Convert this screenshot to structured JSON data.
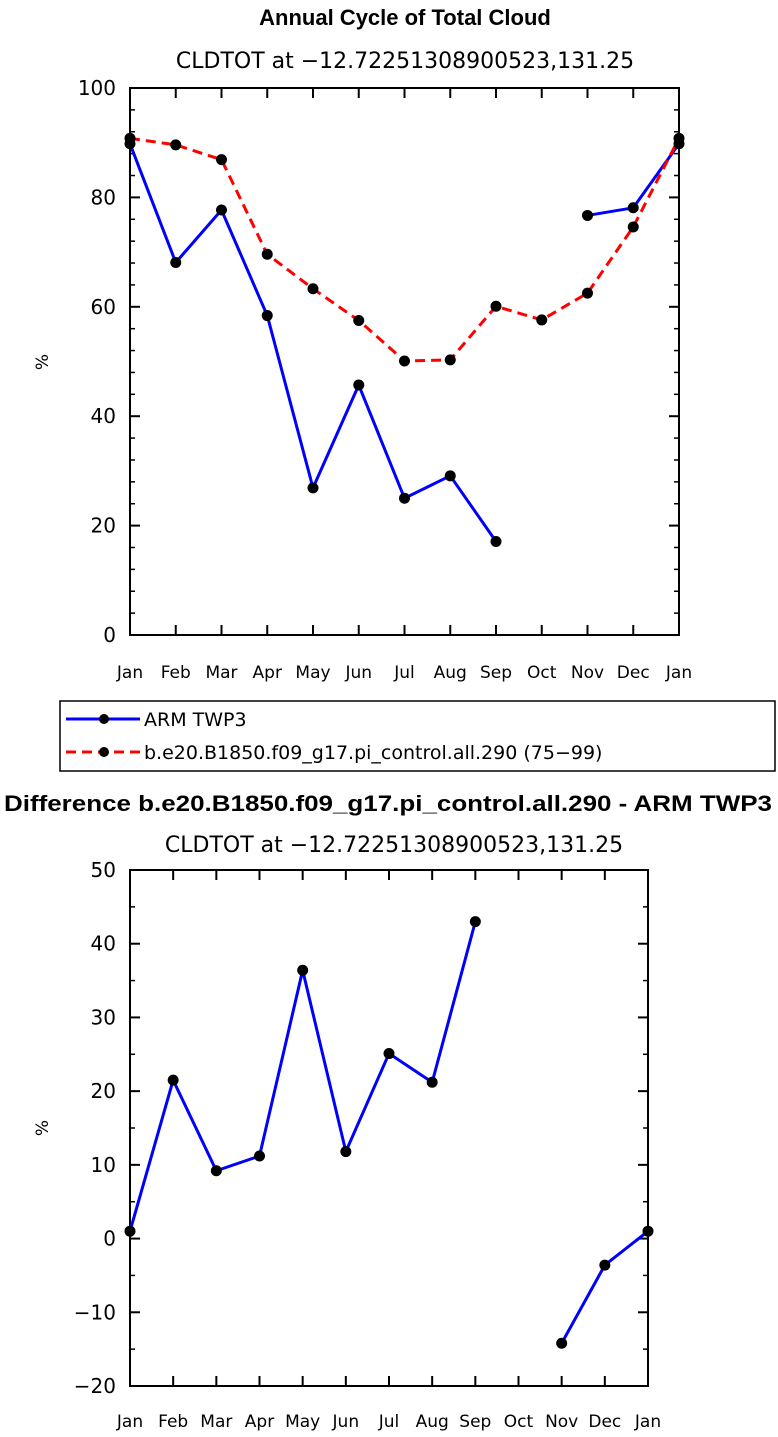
{
  "chart_data": [
    {
      "type": "line",
      "title": "Annual Cycle of Total Cloud",
      "subtitle": "CLDTOT at −12.72251308900523,131.25",
      "ylabel": "%",
      "xlabel": "",
      "ylim": [
        0,
        100
      ],
      "yticks": [
        "0",
        "20",
        "40",
        "60",
        "80",
        "100"
      ],
      "categories": [
        "Jan",
        "Feb",
        "Mar",
        "Apr",
        "May",
        "Jun",
        "Jul",
        "Aug",
        "Sep",
        "Oct",
        "Nov",
        "Dec",
        "Jan"
      ],
      "grid": false,
      "legend_position": "below",
      "series": [
        {
          "name": "ARM TWP3",
          "color": "#0000ff",
          "dash": "solid",
          "values": [
            89.8,
            68.1,
            77.7,
            58.4,
            26.9,
            45.7,
            25.0,
            29.1,
            17.1,
            null,
            76.7,
            78.1,
            89.8
          ]
        },
        {
          "name": "b.e20.B1850.f09_g17.pi_control.all.290 (75−99)",
          "color": "#ff0000",
          "dash": "dashed",
          "values": [
            90.8,
            89.6,
            86.9,
            69.6,
            63.3,
            57.5,
            50.1,
            50.3,
            60.1,
            57.6,
            62.5,
            74.6,
            90.8
          ]
        }
      ]
    },
    {
      "type": "line",
      "title": "Difference b.e20.B1850.f09_g17.pi_control.all.290 - ARM TWP3",
      "subtitle": "CLDTOT at −12.72251308900523,131.25",
      "ylabel": "%",
      "xlabel": "",
      "ylim": [
        -20,
        50
      ],
      "yticks": [
        "−20",
        "−10",
        "0",
        "10",
        "20",
        "30",
        "40",
        "50"
      ],
      "categories": [
        "Jan",
        "Feb",
        "Mar",
        "Apr",
        "May",
        "Jun",
        "Jul",
        "Aug",
        "Sep",
        "Oct",
        "Nov",
        "Dec",
        "Jan"
      ],
      "grid": false,
      "series": [
        {
          "color": "#0000ff",
          "dash": "solid",
          "values": [
            1.0,
            21.5,
            9.2,
            11.2,
            36.4,
            11.8,
            25.1,
            21.2,
            43.0,
            null,
            -14.2,
            -3.6,
            1.0
          ]
        }
      ]
    }
  ]
}
